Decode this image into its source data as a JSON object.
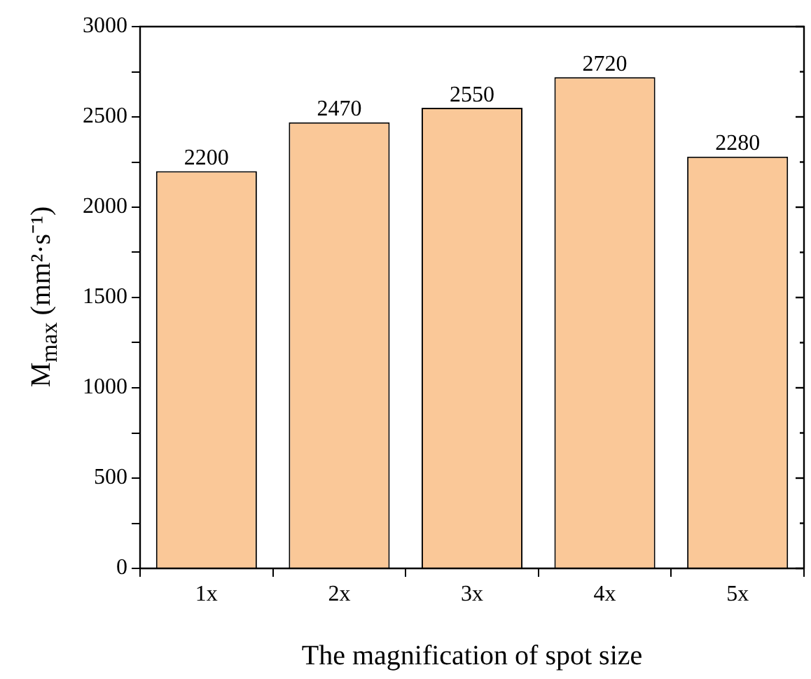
{
  "chart_data": {
    "type": "bar",
    "xlabel": "The magnification of spot size",
    "ylabel": "M$_{max}$ (mm²·s⁻¹)",
    "categories": [
      "1x",
      "2x",
      "3x",
      "4x",
      "5x"
    ],
    "values": [
      2200,
      2470,
      2550,
      2720,
      2280
    ],
    "color": "#fac898",
    "ylim": [
      0,
      3000
    ],
    "yticks": [
      0,
      {
        "value": 250,
        "label": null
      },
      500,
      {
        "value": 750,
        "label": null
      },
      1000,
      {
        "value": 1250,
        "label": null
      },
      1500,
      {
        "value": 1750,
        "label": null
      },
      2000,
      {
        "value": 2250,
        "label": null
      },
      2500,
      {
        "value": 2750,
        "label": null
      },
      3000
    ],
    "data_labels": true,
    "grid": false,
    "legend": false
  }
}
